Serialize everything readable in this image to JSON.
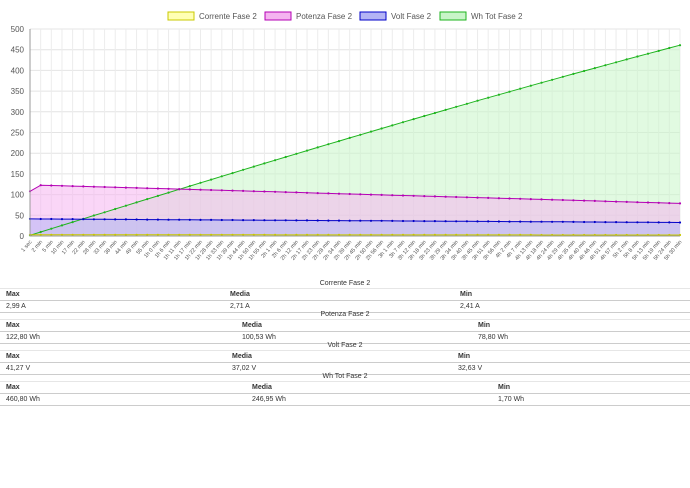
{
  "chart_data": {
    "type": "line",
    "x": [
      "1 sec",
      "2 min",
      "5 min",
      "10 min",
      "17 min",
      "22 min",
      "28 min",
      "33 min",
      "38 min",
      "44 min",
      "49 min",
      "55 min",
      "1h 0 min",
      "1h 6 min",
      "1h 11 min",
      "1h 17 min",
      "1h 22 min",
      "1h 28 min",
      "1h 33 min",
      "1h 39 min",
      "1h 44 min",
      "1h 50 min",
      "1h 55 min",
      "2h 1 min",
      "2h 6 min",
      "2h 12 min",
      "2h 17 min",
      "2h 23 min",
      "2h 28 min",
      "2h 34 min",
      "2h 39 min",
      "2h 45 min",
      "2h 50 min",
      "2h 56 min",
      "3h 1 min",
      "3h 7 min",
      "3h 12 min",
      "3h 18 min",
      "3h 23 min",
      "3h 29 min",
      "3h 34 min",
      "3h 40 min",
      "3h 45 min",
      "3h 51 min",
      "3h 56 min",
      "4h 2 min",
      "4h 7 min",
      "4h 13 min",
      "4h 18 min",
      "4h 24 min",
      "4h 29 min",
      "4h 35 min",
      "4h 40 min",
      "4h 46 min",
      "4h 51 min",
      "4h 57 min",
      "5h 2 min",
      "5h 8 min",
      "5h 13 min",
      "5h 19 min",
      "5h 24 min",
      "5h 30 min"
    ],
    "ylim": [
      0,
      500
    ],
    "yticks": [
      0,
      50,
      100,
      150,
      200,
      250,
      300,
      350,
      400,
      450,
      500
    ],
    "grid": true,
    "legend_position": "top",
    "series": [
      {
        "name": "Corrente Fase 2",
        "color": "#c8c800",
        "fill": "#ffffb4",
        "start": 2.99,
        "end": 2.41
      },
      {
        "name": "Potenza Fase 2",
        "color": "#b400b4",
        "fill": "#f5b4f0",
        "start": 108,
        "peak": 122.8,
        "end": 78.8
      },
      {
        "name": "Volt Fase 2",
        "color": "#0000c8",
        "fill": "#b4b4f5",
        "start": 41.27,
        "end": 32.63
      },
      {
        "name": "Wh Tot Fase 2",
        "color": "#1eb41e",
        "fill": "#c8f5c8",
        "start": 1.7,
        "end": 460.8
      }
    ]
  },
  "stats": [
    {
      "title": "Corrente Fase 2",
      "max_label": "Max",
      "media_label": "Media",
      "min_label": "Min",
      "max": "2,99 A",
      "media": "2,71 A",
      "min": "2,41 A"
    },
    {
      "title": "Potenza Fase 2",
      "max_label": "Max",
      "media_label": "Media",
      "min_label": "Min",
      "max": "122,80 Wh",
      "media": "100,53 Wh",
      "min": "78,80 Wh"
    },
    {
      "title": "Volt Fase 2",
      "max_label": "Max",
      "media_label": "Media",
      "min_label": "Min",
      "max": "41,27 V",
      "media": "37,02 V",
      "min": "32,63 V"
    },
    {
      "title": "Wh Tot Fase 2",
      "max_label": "Max",
      "media_label": "Media",
      "min_label": "Min",
      "max": "460,80 Wh",
      "media": "246,95 Wh",
      "min": "1,70 Wh"
    }
  ]
}
